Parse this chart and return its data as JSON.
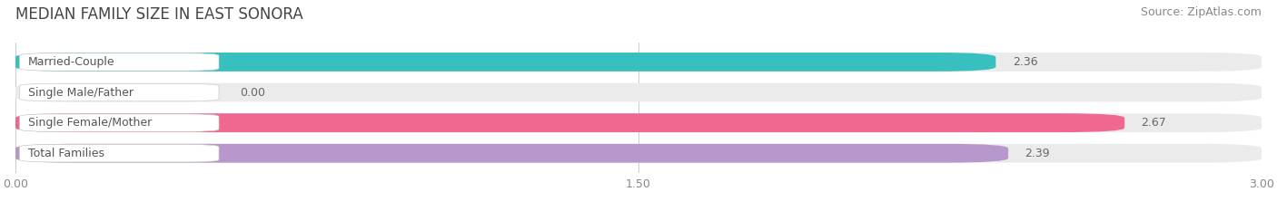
{
  "title": "MEDIAN FAMILY SIZE IN EAST SONORA",
  "source": "Source: ZipAtlas.com",
  "categories": [
    "Married-Couple",
    "Single Male/Father",
    "Single Female/Mother",
    "Total Families"
  ],
  "values": [
    2.36,
    0.0,
    2.67,
    2.39
  ],
  "bar_colors": [
    "#38bfbf",
    "#a8b8e8",
    "#f06890",
    "#b898cc"
  ],
  "bar_bg_color": "#ebebeb",
  "xlim_max": 3.0,
  "xticks": [
    0.0,
    1.5,
    3.0
  ],
  "xtick_labels": [
    "0.00",
    "1.50",
    "3.00"
  ],
  "title_fontsize": 12,
  "source_fontsize": 9,
  "label_fontsize": 9,
  "value_fontsize": 9,
  "bar_height": 0.62,
  "background_color": "#ffffff",
  "grid_color": "#cccccc",
  "title_color": "#444444",
  "source_color": "#888888",
  "label_text_color": "#555555",
  "value_text_color": "#666666"
}
